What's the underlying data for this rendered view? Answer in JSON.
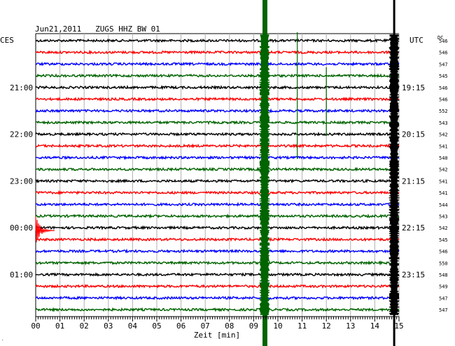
{
  "chart_data": {
    "type": "line",
    "title": "Jun21,2011   ZUGS HHZ BW 01",
    "left_timezone": "CES",
    "right_timezone": "UTC",
    "dc_header": "DC",
    "xlabel": "Zeit [min]",
    "xlim": [
      0,
      15
    ],
    "x_ticks": [
      "00",
      "01",
      "02",
      "03",
      "04",
      "05",
      "06",
      "07",
      "08",
      "09",
      "10",
      "11",
      "12",
      "13",
      "14",
      "15"
    ],
    "grid": true,
    "trace_colors": [
      "#000000",
      "#ff0000",
      "#0000ff",
      "#006400"
    ],
    "rows": [
      {
        "left": "",
        "right": "",
        "dc": "546"
      },
      {
        "left": "",
        "right": "",
        "dc": "546"
      },
      {
        "left": "",
        "right": "",
        "dc": "547"
      },
      {
        "left": "",
        "right": "",
        "dc": "545"
      },
      {
        "left": "21:00",
        "right": "19:15",
        "dc": "546"
      },
      {
        "left": "",
        "right": "",
        "dc": "546"
      },
      {
        "left": "",
        "right": "",
        "dc": "552"
      },
      {
        "left": "",
        "right": "",
        "dc": "543"
      },
      {
        "left": "22:00",
        "right": "20:15",
        "dc": "542"
      },
      {
        "left": "",
        "right": "",
        "dc": "541"
      },
      {
        "left": "",
        "right": "",
        "dc": "540"
      },
      {
        "left": "",
        "right": "",
        "dc": "542"
      },
      {
        "left": "23:00",
        "right": "21:15",
        "dc": "541"
      },
      {
        "left": "",
        "right": "",
        "dc": "541"
      },
      {
        "left": "",
        "right": "",
        "dc": "544"
      },
      {
        "left": "",
        "right": "",
        "dc": "543"
      },
      {
        "left": "00:00",
        "right": "22:15",
        "dc": "542"
      },
      {
        "left": "",
        "right": "",
        "dc": "545"
      },
      {
        "left": "",
        "right": "",
        "dc": "546"
      },
      {
        "left": "",
        "right": "",
        "dc": "550"
      },
      {
        "left": "01:00",
        "right": "23:15",
        "dc": "548"
      },
      {
        "left": "",
        "right": "",
        "dc": "549"
      },
      {
        "left": "",
        "right": "",
        "dc": "547"
      },
      {
        "left": "",
        "right": "",
        "dc": "547"
      }
    ],
    "events": [
      {
        "x_min": 9.35,
        "x_max": 9.55,
        "row_from": 0,
        "row_to": 23,
        "color": "#006400",
        "kind": "saturated"
      },
      {
        "x_min": 14.7,
        "x_max": 14.9,
        "row_from": 0,
        "row_to": 23,
        "color": "#000000",
        "kind": "saturated"
      },
      {
        "x_min": 10.8,
        "x_max": 10.8,
        "row_from": 0,
        "row_to": 10,
        "color": "#006400",
        "kind": "spike"
      },
      {
        "x_min": 12.0,
        "x_max": 12.0,
        "row_from": 3,
        "row_to": 8,
        "color": "#006400",
        "kind": "spike"
      },
      {
        "x_min": 0.0,
        "x_max": 0.8,
        "row_from": 16,
        "row_to": 17,
        "color": "#ff0000",
        "kind": "decay"
      }
    ]
  }
}
